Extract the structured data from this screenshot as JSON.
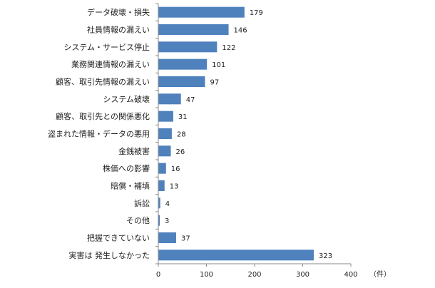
{
  "chart_data": {
    "type": "bar",
    "orientation": "horizontal",
    "categories": [
      "データ破壊・損失",
      "社員情報の漏えい",
      "システム・サービス停止",
      "業務関連情報の漏えい",
      "顧客、取引先情報の漏えい",
      "システム破壊",
      "顧客、取引先との関係悪化",
      "盗まれた情報・データの悪用",
      "金銭被害",
      "株価への影響",
      "賠償・補填",
      "訴訟",
      "その他",
      "把握できていない",
      "実害は 発生しなかった"
    ],
    "values": [
      179,
      146,
      122,
      101,
      97,
      47,
      31,
      28,
      26,
      16,
      13,
      4,
      3,
      37,
      323
    ],
    "xlim": [
      0,
      400
    ],
    "xticks": [
      "0",
      "100",
      "200",
      "300",
      "400"
    ],
    "unit_label": "（件）",
    "bar_color": "#4F81BD",
    "axis_color": "#888888",
    "grid": false,
    "legend": "none"
  }
}
